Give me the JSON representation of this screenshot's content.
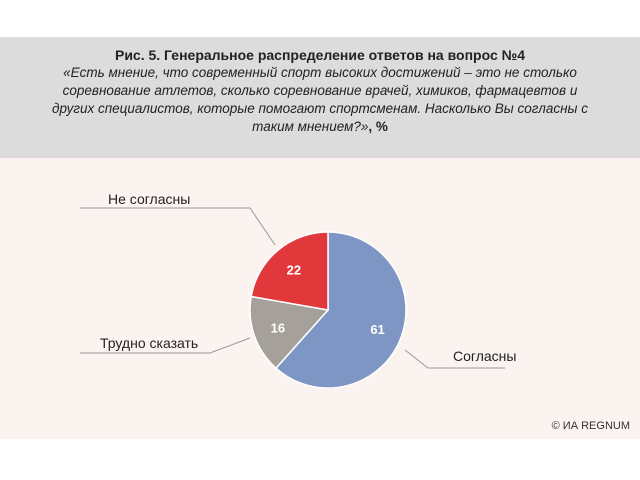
{
  "title": "Рис. 5. Генеральное распределение ответов на вопрос №4",
  "subtitle_question": "«Есть мнение, что современный спорт высоких достижений – это не столько соревнование атлетов, сколько соревнование врачей, химиков, фармацевтов и других специалистов, которые помогают спортсменам. Насколько Вы согласны с таким мнением?»",
  "subtitle_unit": ", %",
  "credit": "© ИА REGNUM",
  "chart_data": {
    "type": "pie",
    "unit": "%",
    "slices": [
      {
        "name": "Согласны",
        "value": 61,
        "color": "#7e96c4"
      },
      {
        "name": "Трудно сказать",
        "value": 16,
        "color": "#a6a09a"
      },
      {
        "name": "Не согласны",
        "value": 22,
        "color": "#e1383c"
      }
    ]
  }
}
